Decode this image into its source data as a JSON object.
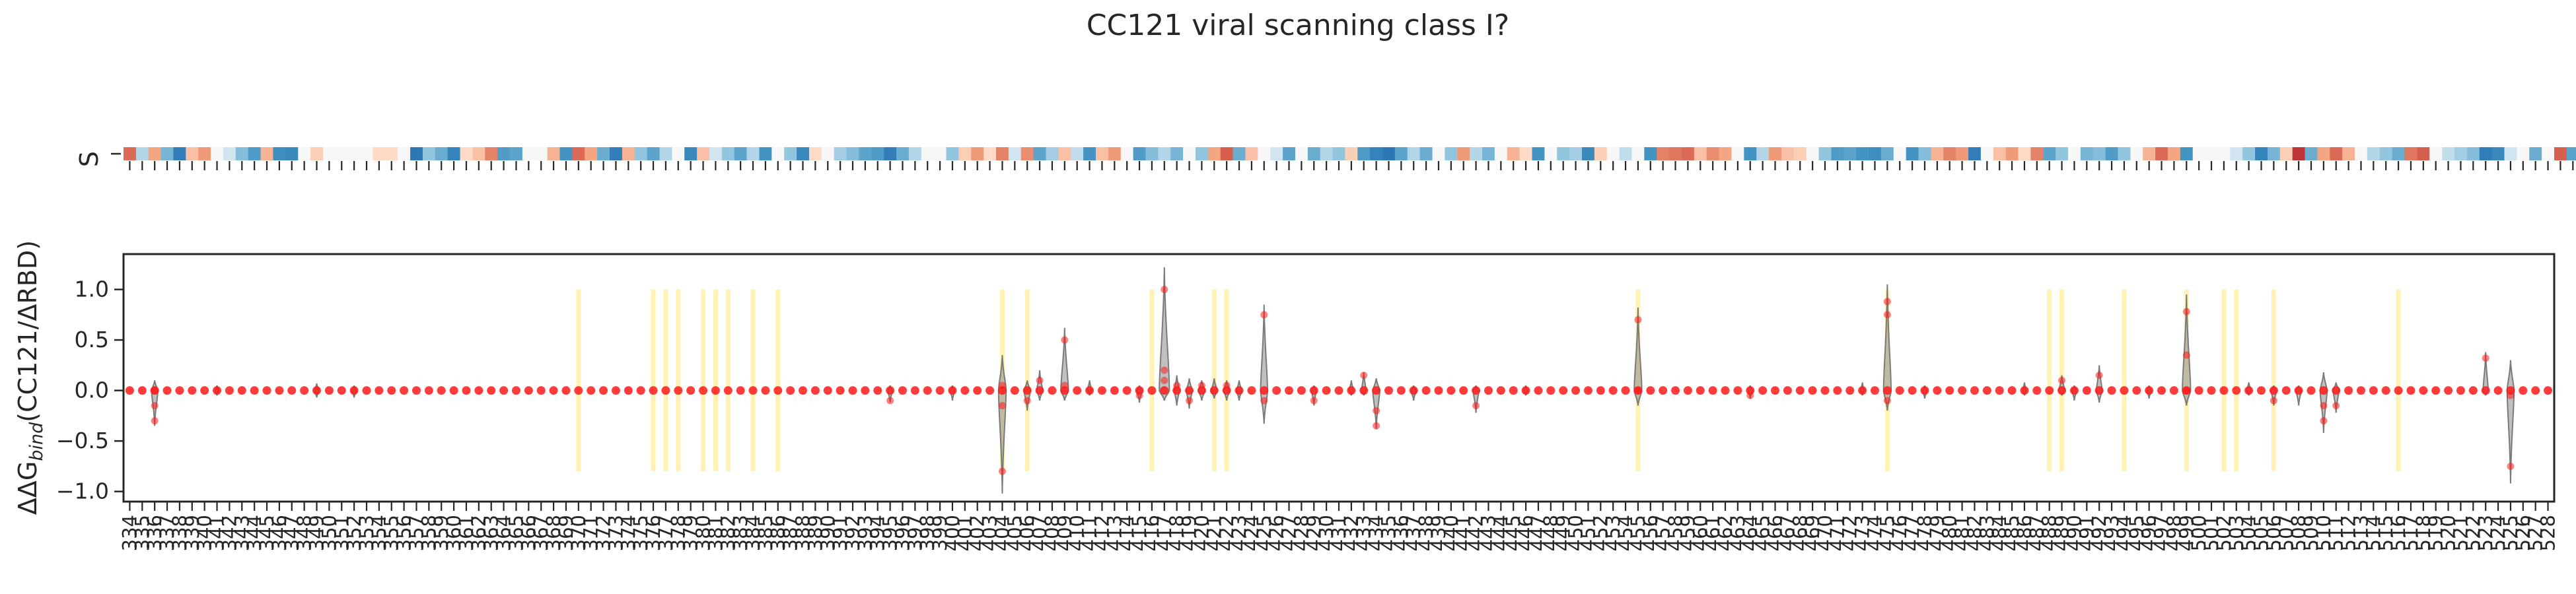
{
  "chart_data": {
    "type": "violin+heatmap",
    "title": "CC121 viral scanning class I?",
    "heatmap": {
      "row_label": "S",
      "colormap": "RdBu_r",
      "values": [
        0.55,
        -0.2,
        0.3,
        -0.4,
        -0.8,
        0.2,
        0.35,
        0.0,
        -0.1,
        -0.35,
        -0.55,
        0.25,
        -0.65,
        -0.7,
        0.0,
        0.15,
        0.0,
        0.0,
        0.0,
        0.0,
        0.1,
        0.1,
        0.0,
        -0.85,
        -0.3,
        -0.45,
        -0.75,
        0.1,
        0.2,
        0.45,
        -0.55,
        -0.5,
        0.0,
        0.0,
        0.25,
        -0.6,
        0.55,
        0.3,
        -0.45,
        -0.8,
        0.25,
        -0.3,
        -0.5,
        -0.2,
        0.0,
        -0.7,
        0.2,
        -0.1,
        -0.3,
        -0.5,
        -0.2,
        -0.6,
        0.0,
        -0.3,
        -0.7,
        0.1,
        0.0,
        -0.25,
        -0.35,
        -0.5,
        -0.55,
        -0.8,
        -0.45,
        -0.2,
        0.0,
        0.0,
        -0.3,
        0.15,
        0.35,
        0.1,
        0.45,
        -0.1,
        0.4,
        -0.5,
        -0.25,
        0.2,
        -0.15,
        -0.6,
        0.2,
        0.35,
        0.0,
        -0.55,
        -0.35,
        -0.2,
        -0.4,
        0.0,
        -0.3,
        0.3,
        0.6,
        -0.45,
        0.2,
        0.0,
        -0.1,
        -0.5,
        0.0,
        -0.45,
        -0.2,
        -0.3,
        0.15,
        -0.55,
        -0.75,
        -0.85,
        -0.5,
        -0.2,
        -0.45,
        0.0,
        -0.3,
        0.35,
        -0.2,
        -0.4,
        0.0,
        0.25,
        0.1,
        -0.6,
        0.0,
        -0.3,
        -0.25,
        -0.7,
        0.15,
        0.0,
        -0.15,
        0.0,
        -0.6,
        0.45,
        0.5,
        0.55,
        0.2,
        0.4,
        0.3,
        0.0,
        -0.6,
        -0.2,
        0.35,
        0.2,
        0.15,
        0.0,
        -0.3,
        -0.55,
        -0.5,
        -0.6,
        -0.65,
        -0.45,
        0.0,
        -0.6,
        -0.35,
        0.25,
        0.45,
        0.35,
        -0.8,
        0.0,
        0.2,
        0.35,
        0.1,
        0.45,
        -0.5,
        -0.3,
        0.0,
        -0.4,
        -0.35,
        -0.55,
        -0.3,
        0.0,
        0.25,
        0.55,
        0.3,
        -0.6,
        0.0,
        0.0,
        0.0,
        -0.1,
        -0.3,
        -0.75,
        -0.4,
        0.15,
        0.85,
        -0.45,
        0.3,
        0.55,
        0.25,
        0.0,
        -0.2,
        -0.3,
        -0.45,
        0.5,
        0.6,
        0.0,
        -0.15,
        -0.25,
        -0.35,
        -0.8,
        -0.7,
        -0.1,
        0.0,
        -0.45,
        0.0,
        0.6,
        -0.5,
        -0.3,
        0.1,
        -0.3,
        0.2,
        -0.75,
        0.0,
        0.35
      ]
    },
    "ylabel_main": "ΔΔG",
    "ylabel_sub": "bind",
    "ylabel_rest": "(CC121/ΔRBD)",
    "ylim": [
      -1.1,
      1.35
    ],
    "yticks": [
      1.0,
      0.5,
      0.0,
      -0.5,
      -1.0
    ],
    "ytick_labels": [
      "1.0",
      "0.5",
      "0.0",
      "−0.5",
      "−1.0"
    ],
    "x_start": 334,
    "x_end": 528,
    "highlight_color": "#fff2b3",
    "highlight_sites": [
      370,
      376,
      377,
      378,
      380,
      381,
      382,
      384,
      386,
      404,
      406,
      416,
      421,
      422,
      455,
      475,
      488,
      489,
      494,
      499,
      502,
      503,
      506,
      516
    ],
    "highlight_range": [
      -0.8,
      1.0
    ],
    "point_color": "#ff1a1a",
    "violin_color": "#8c8c8c",
    "violins": [
      {
        "site": 336,
        "min": -0.35,
        "max": 0.1,
        "w": 0.5,
        "pts": [
          -0.3,
          -0.15,
          0.0
        ]
      },
      {
        "site": 341,
        "min": -0.05,
        "max": 0.05,
        "w": 0.3,
        "pts": []
      },
      {
        "site": 349,
        "min": -0.07,
        "max": 0.07,
        "w": 0.35,
        "pts": []
      },
      {
        "site": 352,
        "min": -0.07,
        "max": 0.05,
        "w": 0.35,
        "pts": []
      },
      {
        "site": 395,
        "min": -0.12,
        "max": 0.05,
        "w": 0.35,
        "pts": [
          -0.1
        ]
      },
      {
        "site": 400,
        "min": -0.1,
        "max": 0.05,
        "w": 0.35,
        "pts": []
      },
      {
        "site": 404,
        "min": -1.02,
        "max": 0.35,
        "w": 0.6,
        "pts": [
          -0.8,
          0.05,
          -0.15
        ]
      },
      {
        "site": 406,
        "min": -0.2,
        "max": 0.1,
        "w": 0.5,
        "pts": [
          -0.1
        ]
      },
      {
        "site": 407,
        "min": -0.1,
        "max": 0.2,
        "w": 0.45,
        "pts": [
          0.1
        ]
      },
      {
        "site": 409,
        "min": -0.1,
        "max": 0.62,
        "w": 0.6,
        "pts": [
          0.5,
          0.05
        ]
      },
      {
        "site": 411,
        "min": -0.05,
        "max": 0.1,
        "w": 0.35,
        "pts": []
      },
      {
        "site": 415,
        "min": -0.12,
        "max": 0.05,
        "w": 0.4,
        "pts": [
          -0.05
        ]
      },
      {
        "site": 417,
        "min": -0.1,
        "max": 1.22,
        "w": 0.8,
        "pts": [
          1.0,
          0.2,
          0.1
        ]
      },
      {
        "site": 418,
        "min": -0.15,
        "max": 0.15,
        "w": 0.4,
        "pts": [
          0.05
        ]
      },
      {
        "site": 419,
        "min": -0.18,
        "max": 0.12,
        "w": 0.45,
        "pts": [
          -0.1
        ]
      },
      {
        "site": 420,
        "min": -0.1,
        "max": 0.1,
        "w": 0.5,
        "pts": [
          0.05
        ]
      },
      {
        "site": 421,
        "min": -0.08,
        "max": 0.12,
        "w": 0.45,
        "pts": []
      },
      {
        "site": 422,
        "min": -0.1,
        "max": 0.1,
        "w": 0.45,
        "pts": [
          0.05
        ]
      },
      {
        "site": 423,
        "min": -0.1,
        "max": 0.1,
        "w": 0.4,
        "pts": []
      },
      {
        "site": 425,
        "min": -0.33,
        "max": 0.85,
        "w": 0.55,
        "pts": [
          0.75,
          -0.1
        ]
      },
      {
        "site": 429,
        "min": -0.15,
        "max": 0.05,
        "w": 0.35,
        "pts": [
          -0.1
        ]
      },
      {
        "site": 432,
        "min": -0.05,
        "max": 0.1,
        "w": 0.35,
        "pts": []
      },
      {
        "site": 433,
        "min": -0.05,
        "max": 0.18,
        "w": 0.35,
        "pts": [
          0.15
        ]
      },
      {
        "site": 434,
        "min": -0.38,
        "max": 0.12,
        "w": 0.55,
        "pts": [
          -0.35,
          -0.2
        ]
      },
      {
        "site": 437,
        "min": -0.1,
        "max": 0.05,
        "w": 0.4,
        "pts": []
      },
      {
        "site": 442,
        "min": -0.22,
        "max": 0.05,
        "w": 0.45,
        "pts": [
          -0.15
        ]
      },
      {
        "site": 446,
        "min": -0.05,
        "max": 0.05,
        "w": 0.35,
        "pts": []
      },
      {
        "site": 455,
        "min": -0.15,
        "max": 0.82,
        "w": 0.6,
        "pts": [
          0.7,
          0.0
        ]
      },
      {
        "site": 464,
        "min": -0.08,
        "max": 0.05,
        "w": 0.35,
        "pts": [
          -0.05
        ]
      },
      {
        "site": 473,
        "min": -0.05,
        "max": 0.08,
        "w": 0.3,
        "pts": []
      },
      {
        "site": 475,
        "min": -0.2,
        "max": 1.05,
        "w": 0.6,
        "pts": [
          0.88,
          0.75,
          -0.1
        ]
      },
      {
        "site": 478,
        "min": -0.08,
        "max": 0.05,
        "w": 0.35,
        "pts": []
      },
      {
        "site": 486,
        "min": -0.05,
        "max": 0.08,
        "w": 0.3,
        "pts": []
      },
      {
        "site": 489,
        "min": -0.05,
        "max": 0.15,
        "w": 0.45,
        "pts": [
          0.1
        ]
      },
      {
        "site": 490,
        "min": -0.1,
        "max": 0.05,
        "w": 0.35,
        "pts": []
      },
      {
        "site": 492,
        "min": -0.12,
        "max": 0.25,
        "w": 0.45,
        "pts": [
          0.15
        ]
      },
      {
        "site": 496,
        "min": -0.08,
        "max": 0.05,
        "w": 0.35,
        "pts": []
      },
      {
        "site": 499,
        "min": -0.15,
        "max": 0.95,
        "w": 0.65,
        "pts": [
          0.78,
          0.35,
          0.0
        ]
      },
      {
        "site": 504,
        "min": -0.05,
        "max": 0.08,
        "w": 0.35,
        "pts": []
      },
      {
        "site": 506,
        "min": -0.15,
        "max": 0.05,
        "w": 0.4,
        "pts": [
          -0.1
        ]
      },
      {
        "site": 508,
        "min": -0.15,
        "max": 0.05,
        "w": 0.4,
        "pts": []
      },
      {
        "site": 510,
        "min": -0.42,
        "max": 0.18,
        "w": 0.55,
        "pts": [
          -0.3,
          -0.15
        ]
      },
      {
        "site": 511,
        "min": -0.22,
        "max": 0.08,
        "w": 0.45,
        "pts": [
          -0.15
        ]
      },
      {
        "site": 523,
        "min": -0.05,
        "max": 0.38,
        "w": 0.4,
        "pts": [
          0.32
        ]
      },
      {
        "site": 525,
        "min": -0.92,
        "max": 0.3,
        "w": 0.55,
        "pts": [
          -0.75,
          -0.05
        ]
      }
    ]
  }
}
